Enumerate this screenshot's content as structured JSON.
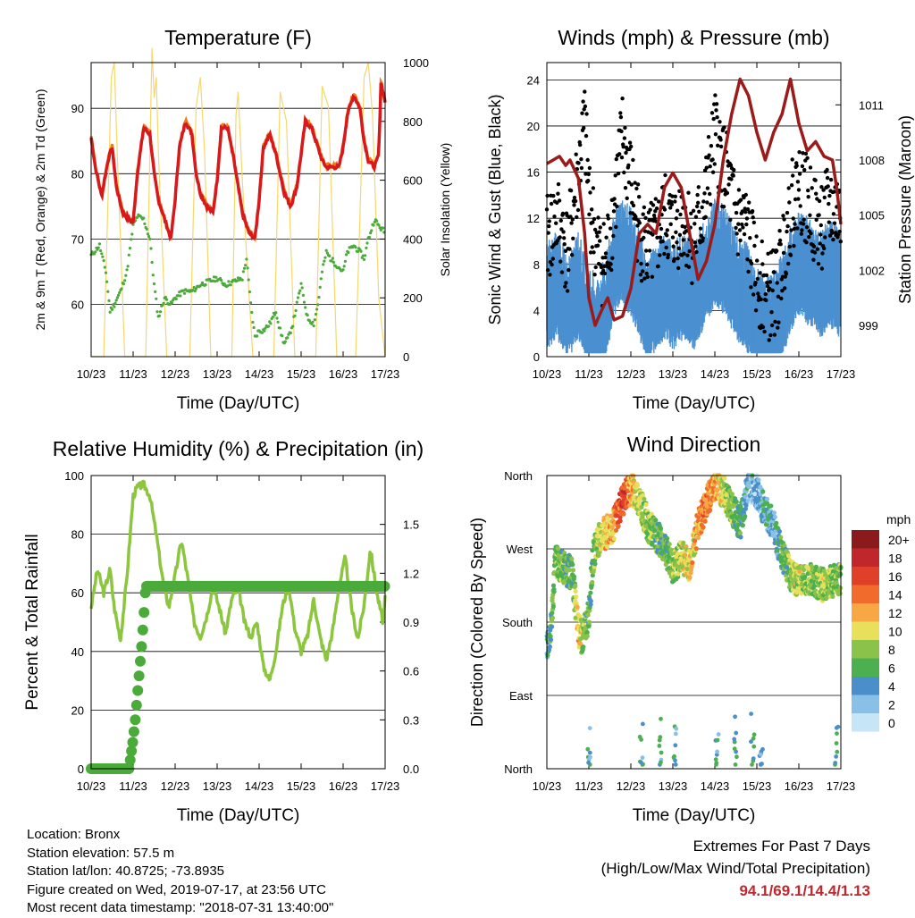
{
  "x_ticks": [
    "10/23",
    "11/23",
    "12/23",
    "13/23",
    "14/23",
    "15/23",
    "16/23",
    "17/23"
  ],
  "x_axis_label": "Time (Day/UTC)",
  "colors": {
    "temp_2m": "#d7191c",
    "temp_9m": "#f07b1a",
    "dewpoint": "#4aaa3a",
    "solar": "#f5d76e",
    "wind": "#4a90d0",
    "gust": "#000000",
    "pressure": "#9b1b1b",
    "rh": "#8cc63f",
    "precip": "#4aaa3a"
  },
  "chart_data": [
    {
      "id": "temperature",
      "type": "line",
      "title": "Temperature (F)",
      "xlabel": "Time (Day/UTC)",
      "ylabel_left": "2m & 9m T (Red, Orange) & 2m Td (Green)",
      "ylabel_right": "Solar Insolation (Yellow)",
      "x_range_days": [
        0,
        7
      ],
      "ylim_left": [
        52,
        97
      ],
      "ylim_right": [
        0,
        1000
      ],
      "yticks_left": [
        60,
        70,
        80,
        90
      ],
      "yticks_right": [
        0,
        200,
        400,
        600,
        800,
        1000
      ],
      "series": [
        {
          "key": "temp_2m",
          "axis": "left",
          "x": [
            0,
            0.1,
            0.25,
            0.4,
            0.5,
            0.6,
            0.75,
            0.9,
            1.0,
            1.1,
            1.25,
            1.4,
            1.5,
            1.6,
            1.75,
            1.9,
            2.0,
            2.1,
            2.25,
            2.4,
            2.5,
            2.6,
            2.75,
            2.9,
            3.0,
            3.1,
            3.25,
            3.4,
            3.5,
            3.6,
            3.75,
            3.9,
            4.0,
            4.1,
            4.25,
            4.4,
            4.5,
            4.6,
            4.75,
            4.9,
            5.0,
            5.1,
            5.25,
            5.4,
            5.5,
            5.6,
            5.75,
            5.9,
            6.0,
            6.1,
            6.25,
            6.4,
            6.5,
            6.6,
            6.75,
            6.85,
            6.9,
            7.0
          ],
          "y": [
            85.5,
            81,
            76.5,
            82,
            84,
            78,
            74,
            73,
            72.5,
            80,
            87,
            86,
            80,
            76,
            73,
            70,
            76,
            84,
            88,
            86,
            80,
            77,
            75,
            74,
            79,
            87,
            87,
            82,
            78,
            74,
            71,
            70,
            76,
            84,
            86,
            83,
            80,
            77,
            75,
            78,
            83,
            88,
            87,
            84,
            82,
            81,
            81,
            81,
            84,
            89,
            92,
            90,
            85,
            82,
            81,
            83,
            94,
            91
          ]
        },
        {
          "key": "dewpoint",
          "axis": "left",
          "x": [
            0,
            0.2,
            0.35,
            0.45,
            0.55,
            0.7,
            0.85,
            1.0,
            1.1,
            1.25,
            1.4,
            1.5,
            1.6,
            1.75,
            1.9,
            2.0,
            2.2,
            2.4,
            2.6,
            2.8,
            3.0,
            3.2,
            3.4,
            3.6,
            3.7,
            3.8,
            3.9,
            4.0,
            4.1,
            4.25,
            4.4,
            4.5,
            4.6,
            4.7,
            4.8,
            4.9,
            5.0,
            5.15,
            5.3,
            5.4,
            5.5,
            5.6,
            5.7,
            5.85,
            6.0,
            6.1,
            6.25,
            6.4,
            6.5,
            6.6,
            6.75,
            6.85,
            7.0
          ],
          "y": [
            67.5,
            69,
            65,
            59,
            60,
            62,
            65,
            72,
            73.5,
            73,
            70,
            63,
            58,
            61,
            60,
            61,
            62,
            62,
            63,
            63.5,
            64,
            63,
            63.5,
            64,
            67,
            60,
            55,
            56,
            56,
            57,
            59,
            56,
            54,
            55,
            57,
            60,
            63,
            58,
            57,
            60,
            65,
            68,
            67,
            66,
            65,
            68,
            69,
            68,
            67,
            70,
            73,
            72,
            71
          ]
        },
        {
          "key": "solar",
          "axis": "right",
          "x": [
            0,
            0.3,
            0.48,
            0.55,
            0.62,
            0.8,
            1.0,
            1.3,
            1.4,
            1.45,
            1.5,
            1.55,
            1.6,
            1.8,
            2.0,
            2.35,
            2.5,
            2.6,
            2.7,
            2.85,
            3.0,
            3.35,
            3.45,
            3.5,
            3.6,
            3.7,
            3.85,
            4.0,
            4.35,
            4.5,
            4.65,
            4.85,
            5.0,
            5.35,
            5.5,
            5.65,
            5.85,
            6.0,
            6.3,
            6.5,
            6.6,
            6.7,
            6.85,
            7.0
          ],
          "y": [
            0,
            0,
            950,
            1000,
            700,
            0,
            0,
            0,
            700,
            1050,
            880,
            950,
            700,
            0,
            0,
            0,
            850,
            950,
            700,
            0,
            0,
            0,
            820,
            900,
            600,
            350,
            0,
            0,
            0,
            900,
            800,
            0,
            0,
            0,
            920,
            850,
            0,
            0,
            0,
            950,
            1000,
            820,
            200,
            0
          ]
        }
      ]
    },
    {
      "id": "winds",
      "type": "line",
      "title": "Winds (mph) & Pressure (mb)",
      "xlabel": "Time (Day/UTC)",
      "ylabel_left": "Sonic Wind & Gust (Blue, Black)",
      "ylabel_right": "Station Pressure (Maroon)",
      "x_range_days": [
        0,
        7
      ],
      "ylim_left": [
        0,
        25.5
      ],
      "ylim_right": [
        997.3,
        1013.3
      ],
      "yticks_left": [
        0,
        4,
        8,
        12,
        16,
        20,
        24
      ],
      "yticks_right": [
        999,
        1002,
        1005,
        1008,
        1011
      ],
      "series": [
        {
          "key": "wind",
          "axis": "left",
          "x": [
            0,
            0.25,
            0.5,
            0.75,
            1.0,
            1.2,
            1.4,
            1.6,
            1.8,
            2.0,
            2.2,
            2.4,
            2.6,
            2.8,
            3.0,
            3.25,
            3.5,
            3.75,
            4.0,
            4.25,
            4.5,
            4.75,
            5.0,
            5.25,
            5.5,
            5.75,
            6.0,
            6.25,
            6.5,
            6.75,
            7.0
          ],
          "y": [
            5,
            6,
            4,
            6,
            3,
            2,
            4,
            8,
            9,
            8,
            6,
            4,
            5,
            6,
            5,
            6,
            5,
            7,
            9,
            8,
            6,
            5,
            3,
            2,
            3,
            6,
            8,
            7,
            6,
            7,
            6
          ]
        },
        {
          "key": "gust",
          "axis": "left",
          "x": [
            0,
            0.25,
            0.5,
            0.75,
            0.9,
            1.0,
            1.2,
            1.4,
            1.6,
            1.8,
            2.0,
            2.2,
            2.4,
            2.6,
            2.8,
            3.0,
            3.25,
            3.5,
            3.75,
            4.0,
            4.25,
            4.5,
            4.75,
            5.0,
            5.25,
            5.5,
            5.75,
            6.0,
            6.25,
            6.5,
            6.75,
            7.0
          ],
          "y": [
            10,
            12,
            9,
            16,
            20,
            14,
            9,
            8,
            13,
            19,
            15,
            11,
            9,
            10,
            12,
            11,
            12,
            10,
            13,
            19,
            16,
            12,
            11,
            7,
            5,
            6,
            12,
            15,
            13,
            11,
            13,
            12
          ]
        },
        {
          "key": "pressure",
          "axis": "right",
          "x": [
            0,
            0.3,
            0.45,
            0.55,
            0.75,
            0.9,
            1.0,
            1.15,
            1.3,
            1.45,
            1.6,
            1.8,
            2.0,
            2.2,
            2.4,
            2.6,
            2.8,
            3.0,
            3.2,
            3.4,
            3.6,
            3.8,
            4.0,
            4.2,
            4.4,
            4.6,
            4.8,
            5.0,
            5.2,
            5.4,
            5.6,
            5.8,
            6.0,
            6.2,
            6.4,
            6.6,
            6.8,
            6.9,
            7.0
          ],
          "y": [
            1007.8,
            1008.2,
            1007.7,
            1008.0,
            1007.0,
            1004.0,
            1000.5,
            999.0,
            999.8,
            1000.5,
            999.3,
            999.5,
            1001.0,
            1004.0,
            1004.5,
            1004.0,
            1006.5,
            1007.3,
            1006.5,
            1004.0,
            1001.5,
            1002.5,
            1004.5,
            1008.0,
            1010.5,
            1012.4,
            1011.5,
            1009.5,
            1008.0,
            1009.5,
            1010.5,
            1012.4,
            1010.0,
            1008.5,
            1009.0,
            1008.2,
            1008.0,
            1006.5,
            1004.5
          ]
        }
      ]
    },
    {
      "id": "humidity",
      "type": "line",
      "title": "Relative Humidity (%) & Precipitation (in)",
      "xlabel": "Time (Day/UTC)",
      "ylabel_left": "Percent & Total Rainfall",
      "x_range_days": [
        0,
        7
      ],
      "ylim_left": [
        0,
        100
      ],
      "ylim_right": [
        0,
        1.8
      ],
      "yticks_left": [
        0,
        20,
        40,
        60,
        80,
        100
      ],
      "yticks_right": [
        0.0,
        0.3,
        0.6,
        0.9,
        1.2,
        1.5
      ],
      "ytick_labels_right": [
        "0.0",
        "0.3",
        "0.6",
        "0.9",
        "1.2",
        "1.5"
      ],
      "series": [
        {
          "key": "rh",
          "axis": "left",
          "x": [
            0,
            0.15,
            0.3,
            0.45,
            0.55,
            0.7,
            0.85,
            1.0,
            1.1,
            1.25,
            1.4,
            1.55,
            1.7,
            1.85,
            2.0,
            2.15,
            2.3,
            2.45,
            2.6,
            2.75,
            2.9,
            3.05,
            3.2,
            3.35,
            3.5,
            3.65,
            3.8,
            3.95,
            4.1,
            4.25,
            4.4,
            4.55,
            4.7,
            4.85,
            5.0,
            5.15,
            5.3,
            5.45,
            5.6,
            5.75,
            5.9,
            6.05,
            6.2,
            6.35,
            6.5,
            6.65,
            6.8,
            6.95,
            7.0
          ],
          "y": [
            55,
            68,
            60,
            68,
            55,
            44,
            65,
            93,
            96,
            97,
            93,
            80,
            65,
            55,
            66,
            78,
            65,
            50,
            45,
            52,
            62,
            55,
            46,
            58,
            62,
            50,
            45,
            50,
            35,
            30,
            40,
            55,
            63,
            48,
            40,
            45,
            58,
            45,
            37,
            47,
            62,
            72,
            55,
            44,
            56,
            75,
            60,
            50,
            58
          ]
        },
        {
          "key": "precip",
          "axis": "right",
          "x": [
            0,
            0.5,
            0.9,
            1.0,
            1.05,
            1.1,
            1.15,
            1.2,
            1.25,
            1.3,
            1.4,
            1.6,
            2.0,
            3.0,
            4.0,
            5.0,
            6.0,
            7.0
          ],
          "y": [
            0,
            0,
            0,
            0.18,
            0.3,
            0.45,
            0.6,
            0.75,
            0.92,
            1.12,
            1.12,
            1.12,
            1.12,
            1.12,
            1.12,
            1.12,
            1.12,
            1.12
          ]
        }
      ]
    },
    {
      "id": "direction",
      "type": "scatter",
      "title": "Wind Direction",
      "xlabel": "Time (Day/UTC)",
      "ylabel_left": "Direction (Colored By Speed)",
      "x_range_days": [
        0,
        7
      ],
      "ylim_left": [
        0,
        360
      ],
      "ytick_values": [
        0,
        90,
        180,
        270,
        360
      ],
      "ytick_labels": [
        "North",
        "East",
        "South",
        "West",
        "North"
      ],
      "track": {
        "x": [
          0,
          0.1,
          0.2,
          0.3,
          0.45,
          0.6,
          0.75,
          0.85,
          1.0,
          1.1,
          1.2,
          1.4,
          1.6,
          1.8,
          2.0,
          2.2,
          2.4,
          2.6,
          2.8,
          3.0,
          3.2,
          3.4,
          3.6,
          3.8,
          4.0,
          4.2,
          4.4,
          4.6,
          4.8,
          5.0,
          5.2,
          5.4,
          5.6,
          5.8,
          6.0,
          6.2,
          6.4,
          6.6,
          6.8,
          7.0
        ],
        "dir": [
          150,
          170,
          255,
          250,
          245,
          240,
          170,
          160,
          190,
          260,
          280,
          290,
          300,
          330,
          345,
          330,
          300,
          285,
          275,
          245,
          260,
          250,
          300,
          325,
          350,
          340,
          320,
          300,
          350,
          340,
          315,
          300,
          260,
          240,
          230,
          235,
          230,
          225,
          230,
          235
        ],
        "speed": [
          4,
          6,
          7,
          8,
          6,
          5,
          12,
          8,
          6,
          7,
          9,
          11,
          13,
          16,
          12,
          9,
          8,
          7,
          6,
          7,
          9,
          10,
          12,
          14,
          12,
          9,
          8,
          5,
          3,
          2,
          4,
          3,
          6,
          8,
          9,
          8,
          7,
          9,
          8,
          7
        ]
      },
      "legend": {
        "title": "mph",
        "labels": [
          "20+",
          "18",
          "16",
          "14",
          "12",
          "10",
          "8",
          "6",
          "4",
          "2",
          "0"
        ],
        "colors": [
          "#8b1a1a",
          "#c0272d",
          "#e0402a",
          "#f06b2c",
          "#f7a743",
          "#e8e05a",
          "#8bc34a",
          "#4caf50",
          "#4a8fc9",
          "#88c0e8",
          "#c6e6f7"
        ]
      }
    }
  ],
  "footer": {
    "location": "Location: Bronx",
    "elevation": "Station elevation: 57.5 m",
    "latlon": "Station lat/lon: 40.8725; -73.8935",
    "created": "Figure created on Wed, 2019-07-17, at 23:56 UTC",
    "timestamp": "Most recent data timestamp: \"2018-07-31 13:40:00\"",
    "extremes_title": "Extremes For Past 7 Days",
    "extremes_sub": "(High/Low/Max Wind/Total Precipitation)",
    "extremes_values": "94.1/69.1/14.4/1.13"
  }
}
